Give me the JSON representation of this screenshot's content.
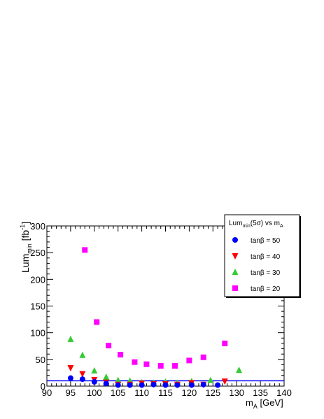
{
  "chart_data": {
    "type": "scatter",
    "ylabel_main": "Lum",
    "ylabel_sub": "min",
    "ylabel_unit_pre": " [fb",
    "ylabel_unit_sup": "-1",
    "ylabel_unit_post": "]",
    "xlabel_main": "m",
    "xlabel_sub": "A",
    "xlabel_unit": " [GeV]",
    "xlim": [
      90,
      140
    ],
    "ylim": [
      0,
      300
    ],
    "xticks": [
      "90",
      "95",
      "100",
      "105",
      "110",
      "115",
      "120",
      "125",
      "130",
      "135",
      "140"
    ],
    "yticks": [
      "0",
      "50",
      "100",
      "150",
      "200",
      "250",
      "300"
    ],
    "reference_line": {
      "y": 10,
      "color": "#0000ff"
    },
    "legend": {
      "title_main": "Lum",
      "title_sub": "min",
      "title_rest": "(5σ) vs m",
      "title_sub2": "A",
      "placement": "top-right"
    },
    "series": [
      {
        "name": "tanβ = 50",
        "marker": "circle",
        "color": "#0000ff",
        "points": [
          [
            95,
            15
          ],
          [
            97.5,
            13
          ],
          [
            100,
            8
          ],
          [
            102.5,
            5
          ],
          [
            105,
            2
          ],
          [
            107.5,
            2
          ],
          [
            110,
            2
          ],
          [
            112.5,
            3
          ],
          [
            115,
            2
          ],
          [
            117.5,
            2
          ],
          [
            120.5,
            2
          ],
          [
            123,
            3
          ],
          [
            126,
            2
          ]
        ]
      },
      {
        "name": "tanβ = 40",
        "marker": "triangle-down",
        "color": "#ff0000",
        "points": [
          [
            95,
            34
          ],
          [
            97.5,
            23
          ],
          [
            100,
            12
          ],
          [
            102.5,
            7
          ],
          [
            105,
            3
          ],
          [
            107.5,
            3
          ],
          [
            110,
            5
          ],
          [
            112.5,
            4
          ],
          [
            115,
            4
          ],
          [
            117.5,
            3
          ],
          [
            120.5,
            6
          ],
          [
            123,
            3
          ],
          [
            127.5,
            9
          ]
        ]
      },
      {
        "name": "tanβ = 30",
        "marker": "triangle-up",
        "color": "#33cc33",
        "points": [
          [
            95,
            88
          ],
          [
            97.5,
            58
          ],
          [
            100,
            29
          ],
          [
            102.5,
            17
          ],
          [
            105,
            11
          ],
          [
            107.5,
            10
          ],
          [
            110,
            7
          ],
          [
            112.5,
            6
          ],
          [
            115,
            8
          ],
          [
            117.5,
            6
          ],
          [
            120.5,
            9
          ],
          [
            124.5,
            11
          ],
          [
            130.5,
            30
          ]
        ]
      },
      {
        "name": "tanβ = 20",
        "marker": "square",
        "color": "#ff00ff",
        "points": [
          [
            98,
            255
          ],
          [
            100.5,
            120
          ],
          [
            103,
            76
          ],
          [
            105.5,
            59
          ],
          [
            108.5,
            45
          ],
          [
            111,
            41
          ],
          [
            114,
            38
          ],
          [
            117,
            38
          ],
          [
            120,
            48
          ],
          [
            123,
            54
          ],
          [
            127.5,
            80
          ]
        ]
      }
    ]
  }
}
